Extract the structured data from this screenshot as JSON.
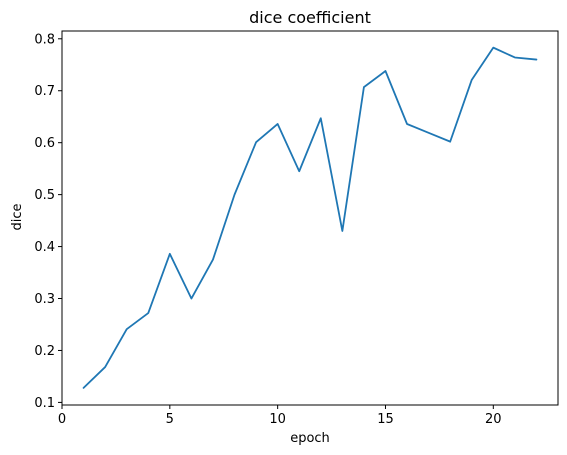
{
  "chart_data": {
    "type": "line",
    "title": "dice coefficient",
    "xlabel": "epoch",
    "ylabel": "dice",
    "xlim": [
      0,
      23
    ],
    "ylim": [
      0.095,
      0.815
    ],
    "xticks": [
      0,
      5,
      10,
      15,
      20
    ],
    "yticks": [
      0.1,
      0.2,
      0.3,
      0.4,
      0.5,
      0.6,
      0.7,
      0.8
    ],
    "xtick_labels": [
      "0",
      "5",
      "10",
      "15",
      "20"
    ],
    "ytick_labels": [
      "0.1",
      "0.2",
      "0.3",
      "0.4",
      "0.5",
      "0.6",
      "0.7",
      "0.8"
    ],
    "grid": false,
    "legend": false,
    "series": [
      {
        "color": "#1f77b4",
        "x": [
          1,
          2,
          3,
          4,
          5,
          6,
          7,
          8,
          9,
          10,
          11,
          12,
          13,
          14,
          15,
          16,
          17,
          18,
          19,
          20,
          21,
          22
        ],
        "y": [
          0.128,
          0.168,
          0.241,
          0.272,
          0.386,
          0.3,
          0.375,
          0.5,
          0.601,
          0.636,
          0.545,
          0.647,
          0.43,
          0.707,
          0.738,
          0.636,
          0.619,
          0.602,
          0.721,
          0.783,
          0.764,
          0.76
        ]
      }
    ]
  }
}
